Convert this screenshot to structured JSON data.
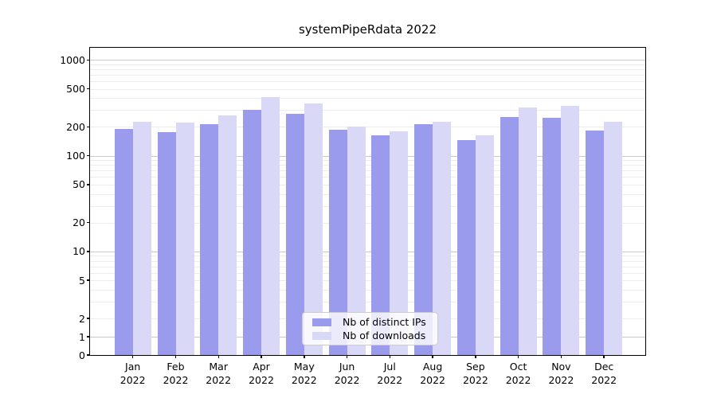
{
  "figure": {
    "title": "systemPipeRdata 2022",
    "background": "#ffffff"
  },
  "legend": {
    "items": [
      {
        "label": "Nb of distinct IPs",
        "color": "#9b9bee"
      },
      {
        "label": "Nb of downloads",
        "color": "#d9d9f7"
      }
    ]
  },
  "colors": {
    "series_dark": "#9b9bee",
    "series_light": "#d9d9f7",
    "grid_major": "#c8c8c8",
    "grid_minor": "#ededed",
    "axis": "#000000",
    "text": "#000000",
    "legend_border": "#cccccc"
  },
  "chart_data": {
    "type": "bar",
    "title": "systemPipeRdata 2022",
    "xlabel": "",
    "ylabel": "",
    "categories": [
      "Jan 2022",
      "Feb 2022",
      "Mar 2022",
      "Apr 2022",
      "May 2022",
      "Jun 2022",
      "Jul 2022",
      "Aug 2022",
      "Sep 2022",
      "Oct 2022",
      "Nov 2022",
      "Dec 2022"
    ],
    "series": [
      {
        "name": "Nb of distinct IPs",
        "color": "#9b9bee",
        "values": [
          192,
          175,
          215,
          304,
          274,
          187,
          162,
          215,
          147,
          252,
          250,
          183
        ]
      },
      {
        "name": "Nb of downloads",
        "color": "#d9d9f7",
        "values": [
          228,
          221,
          265,
          406,
          354,
          200,
          180,
          226,
          164,
          322,
          330,
          225
        ]
      }
    ],
    "y_scale": "symlog (linear 0-2, logarithmic above 2, base 10)",
    "y_ticks": [
      0,
      1,
      2,
      5,
      10,
      20,
      50,
      100,
      200,
      500,
      1000
    ],
    "ylim": [
      0,
      1337
    ],
    "grid": "horizontal, major at powers of 10, minor at 2-9 multiples",
    "legend_position": "inside plot, lower center"
  }
}
